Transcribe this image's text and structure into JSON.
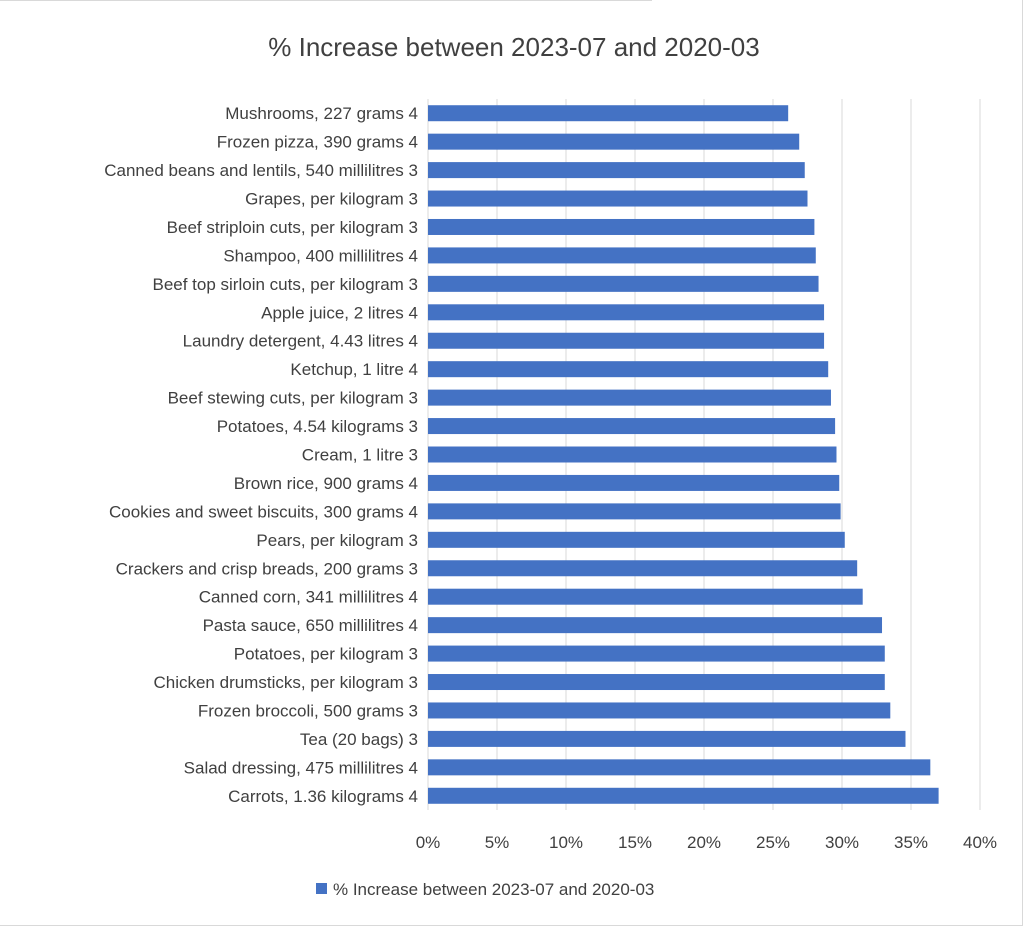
{
  "chart_data": {
    "type": "bar",
    "orientation": "horizontal",
    "title": "% Increase between 2023-07 and 2020-03",
    "xlabel": "",
    "ylabel": "",
    "xlim": [
      0,
      0.4
    ],
    "x_ticks": [
      "0%",
      "5%",
      "10%",
      "15%",
      "20%",
      "25%",
      "30%",
      "35%",
      "40%"
    ],
    "grid": true,
    "legend_position": "bottom",
    "categories": [
      "Mushrooms, 227 grams 4",
      "Frozen pizza, 390 grams 4",
      "Canned beans and lentils, 540 millilitres 3",
      "Grapes, per kilogram 3",
      "Beef striploin cuts, per kilogram 3",
      "Shampoo, 400 millilitres 4",
      "Beef top sirloin cuts, per kilogram 3",
      "Apple juice, 2 litres 4",
      "Laundry detergent, 4.43 litres 4",
      "Ketchup, 1 litre 4",
      "Beef stewing cuts, per kilogram 3",
      "Potatoes, 4.54 kilograms 3",
      "Cream, 1 litre 3",
      "Brown rice, 900 grams  4",
      "Cookies and sweet biscuits, 300 grams  4",
      "Pears, per kilogram 3",
      "Crackers and crisp breads, 200 grams  3",
      "Canned corn, 341 millilitres 4",
      "Pasta sauce, 650 millilitres 4",
      "Potatoes, per kilogram 3",
      "Chicken drumsticks, per kilogram 3",
      "Frozen broccoli, 500 grams 3",
      "Tea (20 bags) 3",
      "Salad dressing, 475 millilitres 4",
      "Carrots, 1.36 kilograms 4"
    ],
    "series": [
      {
        "name": "% Increase between 2023-07 and 2020-03",
        "color": "#4472c4",
        "values": [
          0.261,
          0.269,
          0.273,
          0.275,
          0.28,
          0.281,
          0.283,
          0.287,
          0.287,
          0.29,
          0.292,
          0.295,
          0.296,
          0.298,
          0.299,
          0.302,
          0.311,
          0.315,
          0.329,
          0.331,
          0.331,
          0.335,
          0.346,
          0.364,
          0.37
        ]
      }
    ]
  }
}
